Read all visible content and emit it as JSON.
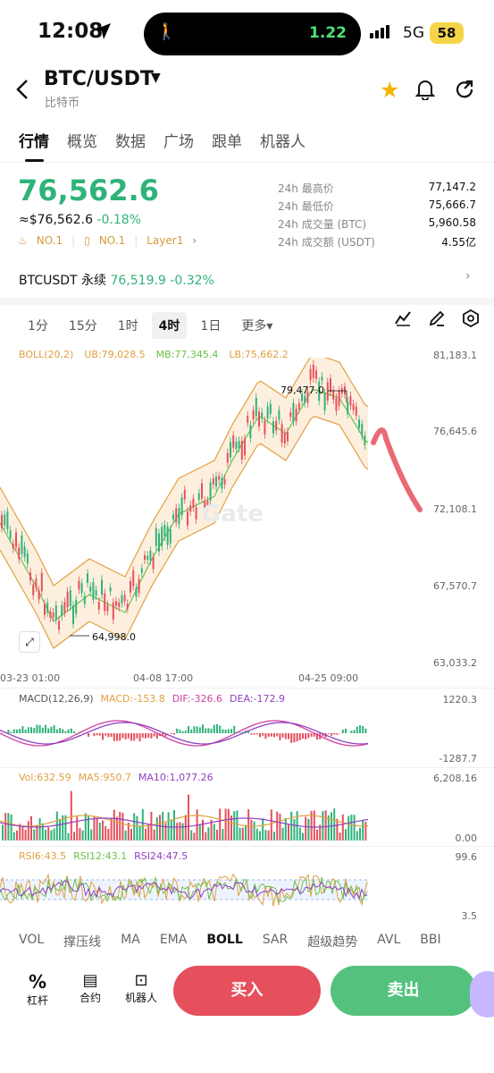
{
  "status": {
    "time": "12:08",
    "island_value": "1.22",
    "network": "5G",
    "battery": "58"
  },
  "header": {
    "pair": "BTC/USDT",
    "subtitle": "比特币"
  },
  "tabs": [
    "行情",
    "概览",
    "数据",
    "广场",
    "跟单",
    "机器人"
  ],
  "price": {
    "last": "76,562.6",
    "usd": "≈$76,562.6",
    "change": "-0.18%",
    "badge1": "NO.1",
    "badge2": "NO.1",
    "badge3": "Layer1"
  },
  "stats": [
    {
      "label": "24h 最高价",
      "value": "77,147.2"
    },
    {
      "label": "24h 最低价",
      "value": "75,666.7"
    },
    {
      "label": "24h 成交量 (BTC)",
      "value": "5,960.58"
    },
    {
      "label": "24h 成交额 (USDT)",
      "value": "4.55亿"
    }
  ],
  "perp": {
    "name": "BTCUSDT 永续",
    "price": "76,519.9",
    "change": "-0.32%"
  },
  "timeframes": [
    "1分",
    "15分",
    "1时",
    "4时",
    "1日",
    "更多▾"
  ],
  "active_timeframe": "4时",
  "boll": {
    "label": "BOLL(20,2)",
    "ub": "UB:79,028.5",
    "mb": "MB:77,345.4",
    "lb": "LB:75,662.2"
  },
  "chart_data": {
    "type": "candlestick",
    "y_axis": [
      "81,183.1",
      "76,645.6",
      "72,108.1",
      "67,570.7",
      "63,033.2"
    ],
    "ylim": [
      63033.2,
      81183.1
    ],
    "x_labels": [
      "03-23 01:00",
      "04-08 17:00",
      "04-25 09:00"
    ],
    "high_label": "79,477.0",
    "low_label": "64,998.0",
    "watermark": "Gate",
    "colors": {
      "up": "#2fb37a",
      "down": "#e5505c",
      "ub": "#e0a040",
      "mb": "#6cc24a"
    }
  },
  "macd": {
    "label": "MACD(12,26,9)",
    "macd": "MACD:-153.8",
    "dif": "DIF:-326.6",
    "dea": "DEA:-172.9",
    "top": "1220.3",
    "bottom": "-1287.7"
  },
  "vol": {
    "label": "Vol:632.59",
    "ma5": "MA5:950.7",
    "ma10": "MA10:1,077.26",
    "top": "6,208.16",
    "bottom": "0.00"
  },
  "rsi": {
    "r6": "RSI6:43.5",
    "r12": "RSI12:43.1",
    "r24": "RSI24:47.5",
    "top": "99.6",
    "bottom": "3.5"
  },
  "indicators": [
    "VOL",
    "撑压线",
    "MA",
    "EMA",
    "BOLL",
    "SAR",
    "超级趋势",
    "AVL",
    "BBI"
  ],
  "active_indicator": "BOLL",
  "bottom": {
    "leverage": "杠杆",
    "contract": "合约",
    "bot": "机器人",
    "buy": "买入",
    "sell": "卖出"
  }
}
